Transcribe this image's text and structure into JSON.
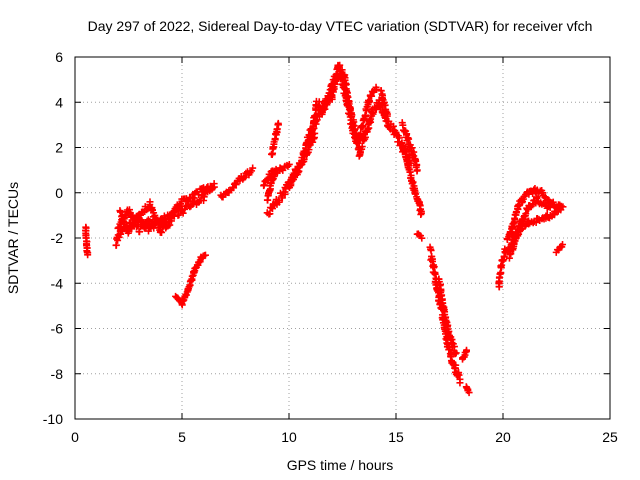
{
  "chart_data": {
    "type": "scatter",
    "title": "Day 297 of 2022, Sidereal Day-to-day VTEC variation (SDTVAR) for receiver vfch",
    "xlabel": "GPS time / hours",
    "ylabel": "SDTVAR / TECUs",
    "xlim": [
      0,
      25
    ],
    "ylim": [
      -10,
      6
    ],
    "xticks": [
      0,
      5,
      10,
      15,
      20,
      25
    ],
    "yticks": [
      -10,
      -8,
      -6,
      -4,
      -2,
      0,
      2,
      4,
      6
    ],
    "grid": true,
    "marker": "+",
    "color": "#ff0000",
    "series": [
      {
        "name": "vfch",
        "tracks": [
          {
            "pts": [
              [
                0.5,
                -1.5
              ],
              [
                0.55,
                -2.3
              ],
              [
                0.58,
                -2.75
              ]
            ],
            "noise": 0.05
          },
          {
            "pts": [
              [
                1.9,
                -2.3
              ],
              [
                2.2,
                -1.6
              ],
              [
                2.6,
                -1.4
              ],
              [
                3.0,
                -1.1
              ],
              [
                3.5,
                -1.6
              ],
              [
                4.0,
                -1.3
              ],
              [
                4.5,
                -1.0
              ],
              [
                5.0,
                -0.8
              ],
              [
                5.5,
                -0.6
              ],
              [
                6.0,
                -0.2
              ],
              [
                6.5,
                0.4
              ]
            ],
            "noise": 0.15
          },
          {
            "pts": [
              [
                2.0,
                -1.6
              ],
              [
                2.5,
                -0.8
              ],
              [
                3.0,
                -1.6
              ],
              [
                3.5,
                -1.3
              ],
              [
                4.0,
                -1.2
              ],
              [
                4.5,
                -1.0
              ],
              [
                5.0,
                -0.4
              ],
              [
                5.5,
                -0.2
              ],
              [
                6.0,
                0.2
              ],
              [
                6.5,
                0.3
              ]
            ],
            "noise": 0.15
          },
          {
            "pts": [
              [
                2.1,
                -0.9
              ],
              [
                2.5,
                -1.7
              ],
              [
                3.0,
                -1.0
              ],
              [
                3.5,
                -0.5
              ],
              [
                4.0,
                -1.7
              ],
              [
                4.5,
                -1.3
              ]
            ],
            "noise": 0.12
          },
          {
            "pts": [
              [
                4.7,
                -4.6
              ],
              [
                5.0,
                -4.9
              ],
              [
                5.3,
                -4.3
              ],
              [
                5.6,
                -3.4
              ],
              [
                5.9,
                -2.9
              ],
              [
                6.1,
                -2.7
              ]
            ],
            "noise": 0.06
          },
          {
            "pts": [
              [
                6.8,
                -0.2
              ],
              [
                7.2,
                0.1
              ],
              [
                7.6,
                0.5
              ],
              [
                8.0,
                0.8
              ],
              [
                8.3,
                1.0
              ]
            ],
            "noise": 0.1
          },
          {
            "pts": [
              [
                8.8,
                0.3
              ],
              [
                9.2,
                0.9
              ],
              [
                9.6,
                1.0
              ],
              [
                10.0,
                1.2
              ]
            ],
            "noise": 0.1
          },
          {
            "pts": [
              [
                9.2,
                1.7
              ],
              [
                9.5,
                3.1
              ]
            ],
            "noise": 0.1
          },
          {
            "pts": [
              [
                9.0,
                -0.3
              ],
              [
                9.2,
                0.6
              ],
              [
                9.4,
                0.9
              ]
            ],
            "noise": 0.1
          },
          {
            "pts": [
              [
                9.0,
                -0.9
              ],
              [
                9.4,
                -0.4
              ],
              [
                9.8,
                0.0
              ],
              [
                10.2,
                0.7
              ],
              [
                10.6,
                1.5
              ],
              [
                11.0,
                2.6
              ],
              [
                11.4,
                3.4
              ],
              [
                11.8,
                4.1
              ],
              [
                12.1,
                5.0
              ],
              [
                12.4,
                5.3
              ],
              [
                12.7,
                4.0
              ],
              [
                13.0,
                2.8
              ],
              [
                13.3,
                1.8
              ],
              [
                13.6,
                2.7
              ],
              [
                13.9,
                3.6
              ],
              [
                14.2,
                4.0
              ],
              [
                14.6,
                3.1
              ],
              [
                15.0,
                2.6
              ],
              [
                15.4,
                1.8
              ],
              [
                15.7,
                1.4
              ]
            ],
            "noise": 0.18
          },
          {
            "pts": [
              [
                10.8,
                2.2
              ],
              [
                11.1,
                2.7
              ],
              [
                11.3,
                4.0
              ],
              [
                11.6,
                3.8
              ],
              [
                12.0,
                4.2
              ],
              [
                12.3,
                5.6
              ],
              [
                12.6,
                5.1
              ],
              [
                12.9,
                3.5
              ],
              [
                13.2,
                2.2
              ],
              [
                13.5,
                3.2
              ],
              [
                13.8,
                4.3
              ],
              [
                14.1,
                4.6
              ]
            ],
            "noise": 0.15
          },
          {
            "pts": [
              [
                10.0,
                0.4
              ],
              [
                10.4,
                0.9
              ],
              [
                10.8,
                1.7
              ],
              [
                11.2,
                2.6
              ]
            ],
            "noise": 0.12
          },
          {
            "pts": [
              [
                14.3,
                4.5
              ],
              [
                14.6,
                3.4
              ]
            ],
            "noise": 0.1
          },
          {
            "pts": [
              [
                15.3,
                3.0
              ],
              [
                15.6,
                2.2
              ],
              [
                15.9,
                1.5
              ],
              [
                16.0,
                1.0
              ]
            ],
            "noise": 0.12
          },
          {
            "pts": [
              [
                15.3,
                2.1
              ],
              [
                15.5,
                1.5
              ],
              [
                15.7,
                0.7
              ],
              [
                15.9,
                0.0
              ],
              [
                16.1,
                -0.5
              ],
              [
                16.2,
                -1.0
              ]
            ],
            "noise": 0.12
          },
          {
            "pts": [
              [
                16.0,
                -1.8
              ],
              [
                16.2,
                -2.0
              ]
            ],
            "noise": 0.06
          },
          {
            "pts": [
              [
                16.6,
                -2.6
              ],
              [
                16.8,
                -3.6
              ],
              [
                17.0,
                -4.6
              ],
              [
                17.2,
                -5.6
              ],
              [
                17.4,
                -6.6
              ],
              [
                17.6,
                -7.3
              ],
              [
                17.8,
                -7.8
              ],
              [
                18.0,
                -8.3
              ]
            ],
            "noise": 0.2
          },
          {
            "pts": [
              [
                17.0,
                -3.8
              ],
              [
                17.2,
                -5.0
              ],
              [
                17.4,
                -6.0
              ],
              [
                17.6,
                -6.6
              ],
              [
                17.8,
                -7.1
              ]
            ],
            "noise": 0.15
          },
          {
            "pts": [
              [
                18.1,
                -7.4
              ],
              [
                18.3,
                -7.0
              ]
            ],
            "noise": 0.08
          },
          {
            "pts": [
              [
                18.3,
                -8.6
              ],
              [
                18.4,
                -8.8
              ]
            ],
            "noise": 0.05
          },
          {
            "pts": [
              [
                19.8,
                -4.2
              ],
              [
                19.9,
                -3.3
              ],
              [
                20.1,
                -2.6
              ],
              [
                20.4,
                -2.3
              ],
              [
                20.6,
                -1.8
              ],
              [
                20.9,
                -1.2
              ],
              [
                21.2,
                -0.6
              ],
              [
                21.6,
                -0.3
              ],
              [
                22.0,
                -0.6
              ],
              [
                22.4,
                -0.5
              ],
              [
                22.7,
                -0.6
              ]
            ],
            "noise": 0.12
          },
          {
            "pts": [
              [
                20.2,
                -2.1
              ],
              [
                20.5,
                -1.3
              ],
              [
                20.7,
                -0.6
              ],
              [
                20.9,
                -0.3
              ],
              [
                21.2,
                0.0
              ],
              [
                21.5,
                0.1
              ],
              [
                21.8,
                0.0
              ],
              [
                22.1,
                -0.3
              ],
              [
                22.4,
                -0.5
              ]
            ],
            "noise": 0.1
          },
          {
            "pts": [
              [
                20.3,
                -2.8
              ],
              [
                20.6,
                -2.0
              ],
              [
                20.9,
                -1.5
              ],
              [
                21.2,
                -1.3
              ],
              [
                21.6,
                -1.2
              ],
              [
                22.0,
                -1.1
              ],
              [
                22.4,
                -0.9
              ],
              [
                22.8,
                -0.6
              ]
            ],
            "noise": 0.1
          },
          {
            "pts": [
              [
                22.5,
                -2.6
              ],
              [
                22.8,
                -2.3
              ]
            ],
            "noise": 0.05
          }
        ]
      }
    ]
  }
}
